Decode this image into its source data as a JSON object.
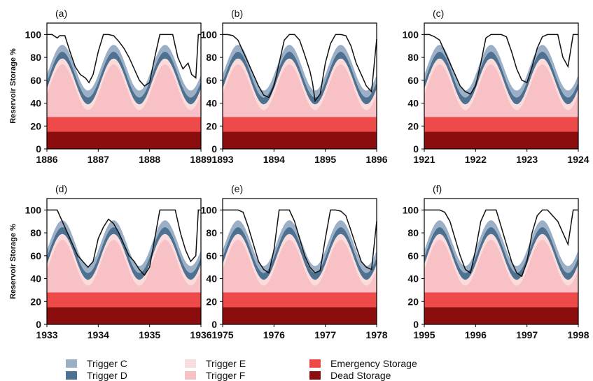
{
  "figure": {
    "ylabel": "Reservoir Storage %",
    "ylim": [
      0,
      110
    ],
    "yticks": [
      0,
      20,
      40,
      60,
      80,
      100
    ]
  },
  "colors": {
    "trigger_c": "#9bb0c6",
    "trigger_d": "#4f7191",
    "trigger_e": "#fbdcdc",
    "trigger_f": "#f8c1c6",
    "emergency": "#ef4a4a",
    "dead": "#8b0d0d",
    "line": "#111111"
  },
  "legend": {
    "trigger_c": "Trigger C",
    "trigger_d": "Trigger D",
    "trigger_e": "Trigger E",
    "trigger_f": "Trigger F",
    "emergency": "Emergency Storage",
    "dead": "Dead Storage"
  },
  "chart_data": [
    {
      "type": "area",
      "panel": "(a)",
      "xticks": [
        "1886",
        "1887",
        "1888",
        "1889"
      ],
      "xlim": [
        1886,
        1889
      ],
      "storage": {
        "x": [
          1886.0,
          1886.1,
          1886.2,
          1886.25,
          1886.35,
          1886.45,
          1886.55,
          1886.65,
          1886.75,
          1886.82,
          1886.9,
          1887.0,
          1887.1,
          1887.2,
          1887.3,
          1887.4,
          1887.5,
          1887.6,
          1887.7,
          1887.8,
          1887.9,
          1888.0,
          1888.1,
          1888.2,
          1888.3,
          1888.45,
          1888.55,
          1888.65,
          1888.75,
          1888.82,
          1888.9,
          1888.95,
          1889.0
        ],
        "y": [
          100,
          100,
          97,
          99,
          99,
          85,
          72,
          65,
          62,
          58,
          65,
          85,
          100,
          100,
          99,
          94,
          88,
          80,
          70,
          60,
          55,
          58,
          80,
          100,
          100,
          100,
          80,
          70,
          75,
          65,
          62,
          100,
          100
        ]
      },
      "bands": {
        "mean": [
          65,
          67.5,
          70,
          72.5,
          75,
          77.5,
          80,
          72.5,
          65
        ],
        "dead": 15,
        "emergency": 28
      }
    },
    {
      "type": "area",
      "panel": "(b)",
      "xticks": [
        "1893",
        "1894",
        "1895",
        "1896"
      ],
      "xlim": [
        1893,
        1896
      ],
      "storage": {
        "x": [
          1893.0,
          1893.1,
          1893.2,
          1893.3,
          1893.4,
          1893.5,
          1893.6,
          1893.7,
          1893.8,
          1893.9,
          1894.0,
          1894.1,
          1894.2,
          1894.3,
          1894.4,
          1894.5,
          1894.6,
          1894.7,
          1894.75,
          1894.8,
          1894.9,
          1895.0,
          1895.1,
          1895.2,
          1895.3,
          1895.4,
          1895.5,
          1895.6,
          1895.7,
          1895.8,
          1895.9,
          1896.0
        ],
        "y": [
          100,
          100,
          99,
          95,
          85,
          75,
          65,
          55,
          47,
          45,
          55,
          75,
          95,
          100,
          100,
          95,
          82,
          68,
          58,
          42,
          48,
          75,
          92,
          100,
          100,
          99,
          90,
          75,
          65,
          55,
          50,
          96
        ]
      },
      "bands": {
        "mean": [
          65,
          67.5,
          70,
          72.5,
          75,
          77.5,
          80,
          72.5,
          65
        ],
        "dead": 15,
        "emergency": 28
      }
    },
    {
      "type": "area",
      "panel": "(c)",
      "xticks": [
        "1921",
        "1922",
        "1923",
        "1924"
      ],
      "xlim": [
        1921,
        1924
      ],
      "storage": {
        "x": [
          1921.0,
          1921.1,
          1921.2,
          1921.3,
          1921.4,
          1921.5,
          1921.6,
          1921.7,
          1921.8,
          1921.9,
          1922.0,
          1922.1,
          1922.2,
          1922.3,
          1922.4,
          1922.5,
          1922.6,
          1922.7,
          1922.8,
          1922.9,
          1923.0,
          1923.1,
          1923.2,
          1923.3,
          1923.4,
          1923.5,
          1923.6,
          1923.7,
          1923.8,
          1923.9,
          1924.0
        ],
        "y": [
          100,
          100,
          98,
          95,
          85,
          75,
          65,
          55,
          50,
          48,
          55,
          75,
          97,
          100,
          100,
          100,
          98,
          85,
          70,
          60,
          58,
          72,
          88,
          98,
          100,
          100,
          100,
          80,
          72,
          100,
          100
        ]
      },
      "bands": {
        "mean": [
          65,
          67.5,
          70,
          72.5,
          75,
          77.5,
          80,
          72.5,
          65
        ],
        "dead": 15,
        "emergency": 28
      }
    },
    {
      "type": "area",
      "panel": "(d)",
      "xticks": [
        "1933",
        "1934",
        "1935",
        "1936"
      ],
      "xlim": [
        1933,
        1936
      ],
      "storage": {
        "x": [
          1933.0,
          1933.2,
          1933.3,
          1933.4,
          1933.5,
          1933.6,
          1933.7,
          1933.8,
          1933.9,
          1934.0,
          1934.1,
          1934.2,
          1934.3,
          1934.4,
          1934.5,
          1934.6,
          1934.7,
          1934.8,
          1934.9,
          1935.0,
          1935.1,
          1935.2,
          1935.3,
          1935.4,
          1935.5,
          1935.6,
          1935.7,
          1935.8,
          1935.9,
          1935.95,
          1936.0
        ],
        "y": [
          100,
          100,
          90,
          80,
          70,
          60,
          55,
          50,
          55,
          75,
          85,
          92,
          88,
          80,
          70,
          60,
          55,
          48,
          43,
          50,
          75,
          100,
          100,
          100,
          100,
          80,
          65,
          55,
          60,
          100,
          100
        ]
      },
      "bands": {
        "mean": [
          65,
          67.5,
          70,
          72.5,
          75,
          77.5,
          80,
          72.5,
          65
        ],
        "dead": 15,
        "emergency": 28
      }
    },
    {
      "type": "area",
      "panel": "(e)",
      "xticks": [
        "1975",
        "1976",
        "1977",
        "1978"
      ],
      "xlim": [
        1975,
        1978
      ],
      "storage": {
        "x": [
          1975.0,
          1975.1,
          1975.2,
          1975.3,
          1975.4,
          1975.5,
          1975.6,
          1975.7,
          1975.8,
          1975.9,
          1976.0,
          1976.1,
          1976.2,
          1976.3,
          1976.4,
          1976.5,
          1976.6,
          1976.7,
          1976.8,
          1976.9,
          1977.0,
          1977.1,
          1977.2,
          1977.3,
          1977.4,
          1977.5,
          1977.6,
          1977.7,
          1977.8,
          1977.9,
          1978.0
        ],
        "y": [
          100,
          100,
          100,
          100,
          98,
          85,
          70,
          55,
          48,
          45,
          65,
          100,
          100,
          100,
          90,
          75,
          60,
          50,
          45,
          47,
          75,
          100,
          100,
          99,
          95,
          82,
          68,
          55,
          50,
          48,
          90
        ]
      },
      "bands": {
        "mean": [
          65,
          67.5,
          70,
          72.5,
          75,
          77.5,
          80,
          72.5,
          65
        ],
        "dead": 15,
        "emergency": 28
      }
    },
    {
      "type": "area",
      "panel": "(f)",
      "xticks": [
        "1995",
        "1996",
        "1997",
        "1998"
      ],
      "xlim": [
        1995,
        1998
      ],
      "storage": {
        "x": [
          1995.0,
          1995.1,
          1995.2,
          1995.3,
          1995.4,
          1995.5,
          1995.6,
          1995.7,
          1995.8,
          1995.9,
          1996.0,
          1996.1,
          1996.2,
          1996.3,
          1996.4,
          1996.5,
          1996.6,
          1996.7,
          1996.8,
          1996.9,
          1997.0,
          1997.1,
          1997.2,
          1997.3,
          1997.4,
          1997.5,
          1997.6,
          1997.7,
          1997.8,
          1997.9,
          1998.0
        ],
        "y": [
          100,
          100,
          100,
          100,
          98,
          90,
          75,
          60,
          48,
          45,
          65,
          90,
          100,
          100,
          100,
          85,
          70,
          55,
          45,
          42,
          55,
          80,
          95,
          100,
          100,
          95,
          90,
          80,
          70,
          100,
          100
        ]
      },
      "bands": {
        "mean": [
          65,
          67.5,
          70,
          72.5,
          75,
          77.5,
          80,
          72.5,
          65
        ],
        "dead": 15,
        "emergency": 28
      }
    }
  ]
}
